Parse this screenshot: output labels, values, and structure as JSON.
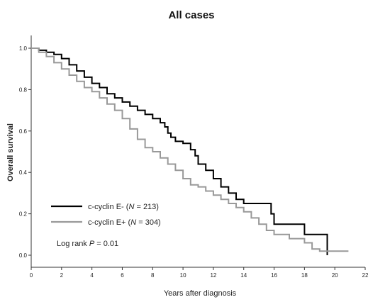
{
  "chart_data": {
    "type": "line",
    "title": "All cases",
    "xlabel": "Years after diagnosis",
    "ylabel": "Overall survival",
    "xlim": [
      0,
      22
    ],
    "ylim": [
      0,
      1.0
    ],
    "x_ticks": [
      "0",
      "2",
      "4",
      "6",
      "8",
      "10",
      "12",
      "14",
      "16",
      "18",
      "20",
      "22"
    ],
    "y_ticks": [
      "0.0",
      "0.2",
      "0.4",
      "0.6",
      "0.8",
      "1.0"
    ],
    "legend_placement": "lower-left",
    "grid": false,
    "series": [
      {
        "name": "c-cyclin E- (N = 213)",
        "label_main": "c-cyclin E- (",
        "label_italic": "N",
        "label_tail": " = 213)",
        "color": "#000000",
        "x": [
          0,
          0.5,
          1.0,
          1.5,
          2.0,
          2.5,
          3.0,
          3.5,
          4.0,
          4.5,
          5.0,
          5.5,
          6.0,
          6.5,
          7.0,
          7.5,
          8.0,
          8.5,
          8.8,
          9.0,
          9.2,
          9.5,
          10.0,
          10.5,
          10.8,
          11.0,
          11.5,
          12.0,
          12.5,
          13.0,
          13.5,
          14.0,
          15.0,
          15.8,
          16.0,
          17.0,
          18.0,
          19.0,
          19.5,
          19.5
        ],
        "y": [
          1.0,
          0.99,
          0.98,
          0.97,
          0.95,
          0.92,
          0.89,
          0.86,
          0.83,
          0.81,
          0.78,
          0.76,
          0.74,
          0.72,
          0.7,
          0.68,
          0.66,
          0.64,
          0.62,
          0.59,
          0.57,
          0.55,
          0.54,
          0.51,
          0.48,
          0.44,
          0.41,
          0.37,
          0.33,
          0.3,
          0.27,
          0.25,
          0.25,
          0.2,
          0.15,
          0.15,
          0.1,
          0.1,
          0.1,
          0.0
        ]
      },
      {
        "name": "c-cyclin E+ (N = 304)",
        "label_main": "c-cyclin E+ (",
        "label_italic": "N",
        "label_tail": " = 304)",
        "color": "#999999",
        "x": [
          0,
          0.5,
          1.0,
          1.5,
          2.0,
          2.5,
          3.0,
          3.5,
          4.0,
          4.5,
          5.0,
          5.5,
          6.0,
          6.5,
          7.0,
          7.5,
          8.0,
          8.5,
          9.0,
          9.5,
          10.0,
          10.5,
          11.0,
          11.5,
          12.0,
          12.5,
          13.0,
          13.5,
          14.0,
          14.5,
          15.0,
          15.5,
          16.0,
          17.0,
          18.0,
          18.5,
          19.0,
          20.0,
          20.9
        ],
        "y": [
          1.0,
          0.98,
          0.96,
          0.93,
          0.9,
          0.87,
          0.84,
          0.81,
          0.79,
          0.76,
          0.73,
          0.7,
          0.66,
          0.61,
          0.56,
          0.52,
          0.5,
          0.47,
          0.44,
          0.41,
          0.37,
          0.34,
          0.33,
          0.31,
          0.29,
          0.27,
          0.25,
          0.23,
          0.21,
          0.18,
          0.15,
          0.12,
          0.1,
          0.08,
          0.06,
          0.03,
          0.02,
          0.02,
          0.02
        ]
      }
    ],
    "annotation": {
      "prefix": "Log rank ",
      "italic": "P",
      "suffix": " = 0.01"
    }
  }
}
